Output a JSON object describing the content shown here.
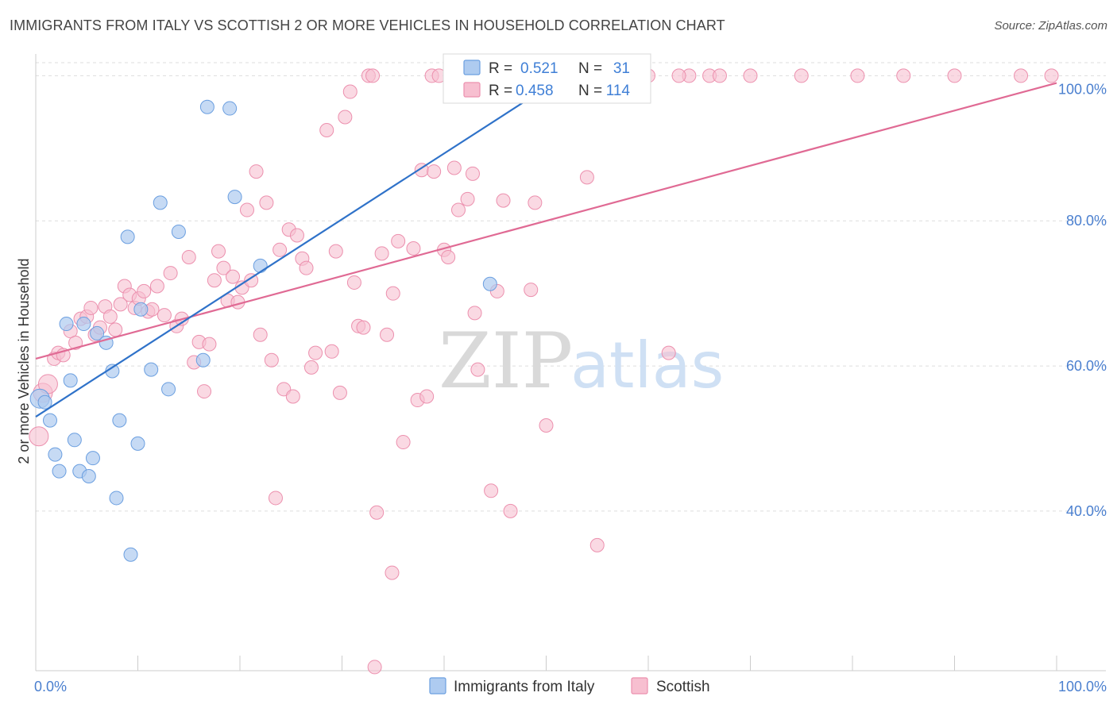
{
  "title": "IMMIGRANTS FROM ITALY VS SCOTTISH 2 OR MORE VEHICLES IN HOUSEHOLD CORRELATION CHART",
  "source": "Source: ZipAtlas.com",
  "watermark": {
    "zip": "ZIP",
    "atlas": "atlas"
  },
  "colors": {
    "italy_fill": "#aecbf0",
    "italy_stroke": "#6b9fe0",
    "italy_line": "#2f72c9",
    "scottish_fill": "#f7bfd0",
    "scottish_stroke": "#ec90ae",
    "scottish_line": "#e06a94",
    "grid": "#dddddd",
    "tick_label": "#4a7fcf"
  },
  "legend": {
    "rows": [
      {
        "r_label": "R =",
        "r_value": "0.521",
        "n_label": "N =",
        "n_value": "31"
      },
      {
        "r_label": "R =",
        "r_value": "0.458",
        "n_label": "N =",
        "n_value": "114"
      }
    ]
  },
  "chart_data": {
    "type": "scatter",
    "title": "IMMIGRANTS FROM ITALY VS SCOTTISH 2 OR MORE VEHICLES IN HOUSEHOLD CORRELATION CHART",
    "xlabel": "",
    "ylabel": "2 or more Vehicles in Household",
    "xlim": [
      0,
      100
    ],
    "ylim": [
      18,
      103
    ],
    "x_tick_labels": [
      "0.0%",
      "100.0%"
    ],
    "y_ticks": [
      40,
      60,
      80,
      100
    ],
    "y_tick_labels": [
      "40.0%",
      "60.0%",
      "80.0%",
      "100.0%"
    ],
    "grid": true,
    "legend_position": "top-center",
    "series": [
      {
        "name": "Immigrants from Italy",
        "r": 0.521,
        "n": 31,
        "trend": {
          "x": [
            0,
            48.5
          ],
          "y": [
            53.0,
            97.0
          ]
        },
        "points": [
          [
            0.4,
            55.5
          ],
          [
            0.9,
            55.0
          ],
          [
            1.4,
            52.5
          ],
          [
            1.9,
            47.8
          ],
          [
            2.3,
            45.5
          ],
          [
            3.0,
            65.8
          ],
          [
            3.4,
            58.0
          ],
          [
            3.8,
            49.8
          ],
          [
            4.3,
            45.5
          ],
          [
            4.7,
            65.8
          ],
          [
            5.2,
            44.8
          ],
          [
            5.6,
            47.3
          ],
          [
            6.0,
            64.5
          ],
          [
            6.9,
            63.2
          ],
          [
            7.5,
            59.3
          ],
          [
            7.9,
            41.8
          ],
          [
            8.2,
            52.5
          ],
          [
            9.0,
            77.8
          ],
          [
            9.3,
            34.0
          ],
          [
            10.0,
            49.3
          ],
          [
            10.3,
            67.8
          ],
          [
            11.3,
            59.5
          ],
          [
            12.2,
            82.5
          ],
          [
            13.0,
            56.8
          ],
          [
            14.0,
            78.5
          ],
          [
            16.4,
            60.8
          ],
          [
            16.8,
            95.7
          ],
          [
            19.0,
            95.5
          ],
          [
            19.5,
            83.3
          ],
          [
            22.0,
            73.8
          ],
          [
            44.5,
            71.3
          ]
        ]
      },
      {
        "name": "Scottish",
        "r": 0.458,
        "n": 114,
        "trend": {
          "x": [
            0,
            100
          ],
          "y": [
            61.0,
            99.0
          ]
        },
        "points": [
          [
            0.3,
            50.3
          ],
          [
            0.7,
            56.3
          ],
          [
            1.2,
            57.5
          ],
          [
            1.8,
            61.0
          ],
          [
            2.2,
            61.8
          ],
          [
            2.7,
            61.5
          ],
          [
            3.4,
            64.8
          ],
          [
            3.9,
            63.2
          ],
          [
            4.4,
            66.5
          ],
          [
            5.0,
            66.8
          ],
          [
            5.4,
            68.0
          ],
          [
            5.8,
            64.3
          ],
          [
            6.3,
            65.3
          ],
          [
            6.8,
            68.2
          ],
          [
            7.3,
            66.8
          ],
          [
            7.8,
            65.0
          ],
          [
            8.3,
            68.5
          ],
          [
            8.7,
            71.0
          ],
          [
            9.2,
            69.8
          ],
          [
            9.7,
            68.0
          ],
          [
            10.1,
            69.3
          ],
          [
            10.6,
            70.3
          ],
          [
            11.0,
            67.5
          ],
          [
            11.4,
            67.8
          ],
          [
            11.9,
            71.0
          ],
          [
            12.6,
            67.0
          ],
          [
            13.2,
            72.8
          ],
          [
            13.8,
            65.5
          ],
          [
            14.3,
            66.5
          ],
          [
            15.0,
            75.0
          ],
          [
            15.5,
            60.5
          ],
          [
            16.0,
            63.3
          ],
          [
            16.5,
            56.5
          ],
          [
            17.0,
            63.0
          ],
          [
            17.5,
            71.8
          ],
          [
            17.9,
            75.8
          ],
          [
            18.4,
            73.5
          ],
          [
            18.8,
            69.0
          ],
          [
            19.3,
            72.3
          ],
          [
            19.8,
            68.8
          ],
          [
            20.2,
            70.8
          ],
          [
            20.7,
            81.5
          ],
          [
            21.1,
            71.8
          ],
          [
            21.6,
            86.8
          ],
          [
            22.0,
            64.3
          ],
          [
            22.6,
            82.5
          ],
          [
            23.1,
            60.8
          ],
          [
            23.5,
            41.8
          ],
          [
            23.9,
            76.0
          ],
          [
            24.3,
            56.8
          ],
          [
            24.8,
            78.8
          ],
          [
            25.2,
            55.8
          ],
          [
            25.6,
            78.0
          ],
          [
            26.1,
            74.8
          ],
          [
            26.5,
            73.5
          ],
          [
            27.0,
            59.8
          ],
          [
            27.4,
            61.8
          ],
          [
            28.5,
            92.5
          ],
          [
            29.0,
            62.0
          ],
          [
            29.4,
            75.8
          ],
          [
            29.8,
            56.3
          ],
          [
            30.3,
            94.3
          ],
          [
            30.8,
            97.8
          ],
          [
            31.2,
            71.5
          ],
          [
            31.6,
            65.5
          ],
          [
            32.1,
            65.3
          ],
          [
            32.6,
            100.0
          ],
          [
            33.0,
            100.0
          ],
          [
            33.4,
            39.8
          ],
          [
            33.9,
            75.5
          ],
          [
            34.4,
            64.3
          ],
          [
            34.9,
            31.5
          ],
          [
            35.0,
            70.0
          ],
          [
            35.5,
            77.2
          ],
          [
            36.0,
            49.5
          ],
          [
            37.0,
            76.2
          ],
          [
            37.4,
            55.3
          ],
          [
            37.8,
            87.0
          ],
          [
            38.3,
            55.8
          ],
          [
            38.8,
            100.0
          ],
          [
            39.0,
            86.8
          ],
          [
            39.5,
            100.0
          ],
          [
            40.0,
            76.0
          ],
          [
            40.4,
            75.0
          ],
          [
            41.0,
            87.3
          ],
          [
            41.4,
            81.5
          ],
          [
            42.3,
            83.0
          ],
          [
            42.8,
            86.5
          ],
          [
            43.0,
            67.3
          ],
          [
            43.3,
            59.5
          ],
          [
            44.6,
            42.8
          ],
          [
            45.2,
            70.3
          ],
          [
            45.8,
            82.8
          ],
          [
            46.5,
            40.0
          ],
          [
            48.5,
            70.5
          ],
          [
            48.9,
            82.5
          ],
          [
            50.0,
            51.8
          ],
          [
            50.5,
            100.0
          ],
          [
            54.0,
            86.0
          ],
          [
            55.0,
            35.3
          ],
          [
            59.0,
            100.0
          ],
          [
            62.0,
            61.8
          ],
          [
            64.0,
            100.0
          ],
          [
            66.0,
            100.0
          ],
          [
            67.0,
            100.0
          ],
          [
            70.0,
            100.0
          ],
          [
            75.0,
            100.0
          ],
          [
            80.5,
            100.0
          ],
          [
            85.0,
            100.0
          ],
          [
            90.0,
            100.0
          ],
          [
            96.5,
            100.0
          ],
          [
            99.5,
            100.0
          ],
          [
            60.0,
            100.0
          ],
          [
            63.0,
            100.0
          ],
          [
            33.2,
            18.5
          ]
        ]
      }
    ]
  },
  "bottom_legend": [
    {
      "label": "Immigrants from Italy"
    },
    {
      "label": "Scottish"
    }
  ]
}
